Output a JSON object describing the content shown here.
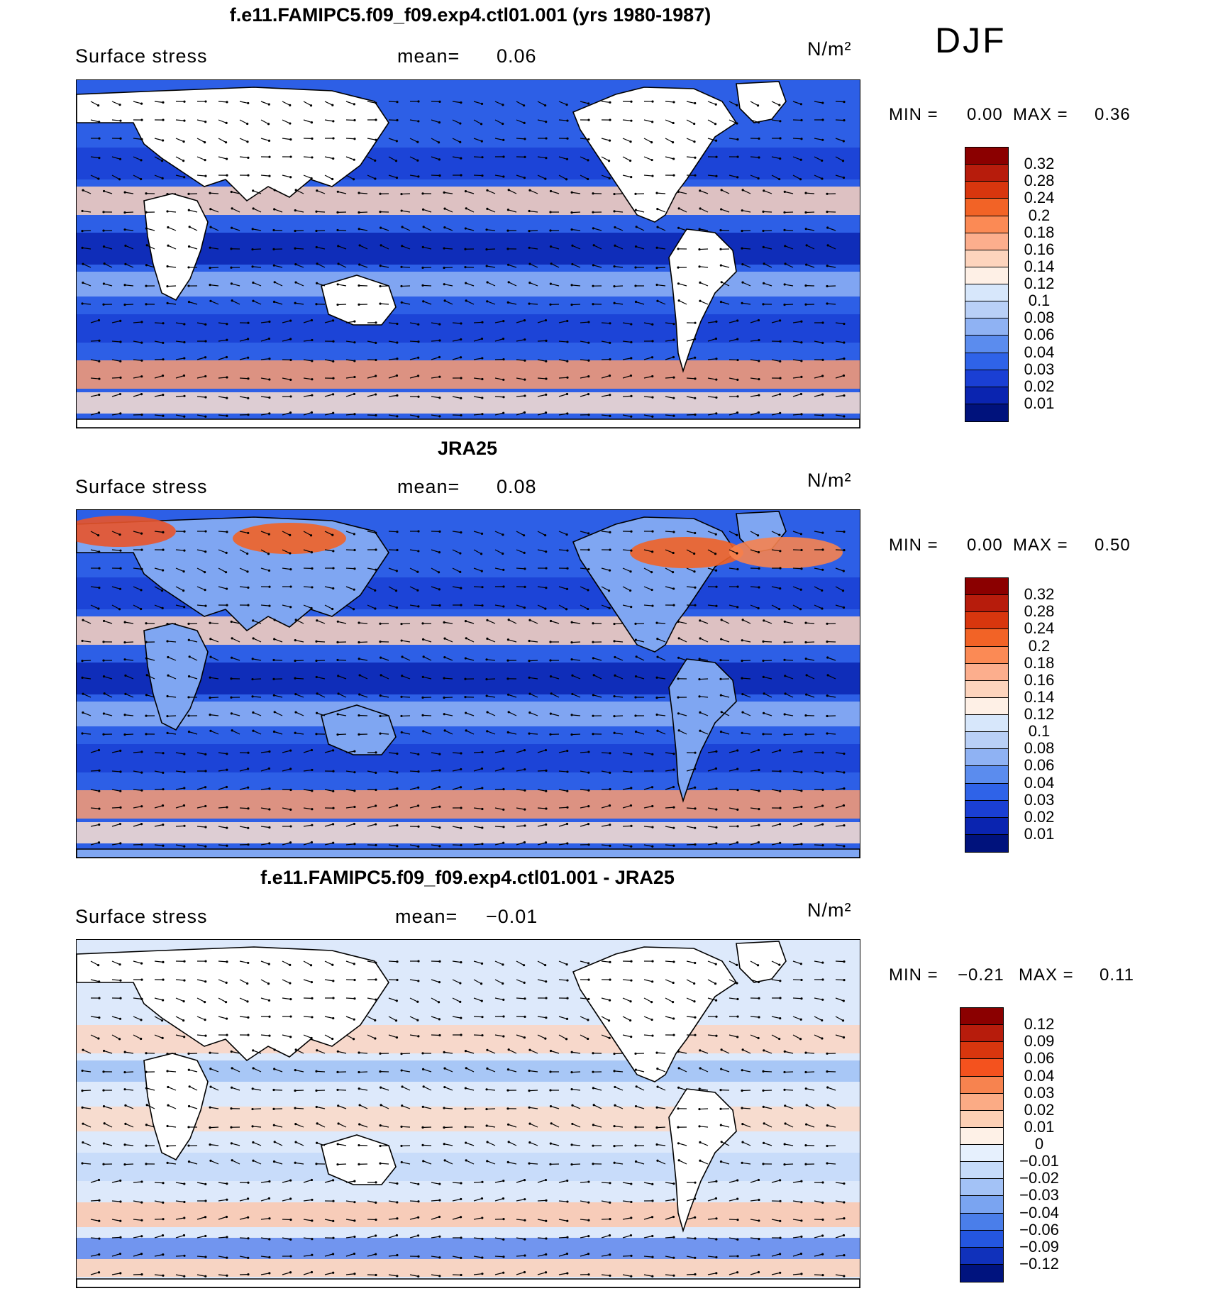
{
  "season": "DJF",
  "panels": [
    {
      "id": "model",
      "title": "f.e11.FAMIPC5.f09_f09.exp4.ctl01.001 (yrs 1980-1987)",
      "variable": "Surface stress",
      "mean_label": "mean=",
      "mean_value": "0.06",
      "units": "N/m²",
      "min_label": "MIN =",
      "min_value": "0.00",
      "max_label": "MAX =",
      "max_value": "0.36",
      "colorbar_labels": [
        "0.32",
        "0.28",
        "0.24",
        "0.2",
        "0.18",
        "0.16",
        "0.14",
        "0.12",
        "0.1",
        "0.08",
        "0.06",
        "0.04",
        "0.03",
        "0.02",
        "0.01"
      ],
      "colorbar_colors": [
        "#8b0000",
        "#b71c0c",
        "#d8360e",
        "#f26326",
        "#fb8a55",
        "#fcae8d",
        "#fdd4bd",
        "#fef0e6",
        "#d7e7fb",
        "#b9d0f7",
        "#8fb2f3",
        "#5b8cee",
        "#2f63e8",
        "#1a3fd4",
        "#0a24b0",
        "#00127c"
      ]
    },
    {
      "id": "obs",
      "title": "JRA25",
      "variable": "Surface stress",
      "mean_label": "mean=",
      "mean_value": "0.08",
      "units": "N/m²",
      "min_label": "MIN =",
      "min_value": "0.00",
      "max_label": "MAX =",
      "max_value": "0.50",
      "colorbar_labels": [
        "0.32",
        "0.28",
        "0.24",
        "0.2",
        "0.18",
        "0.16",
        "0.14",
        "0.12",
        "0.1",
        "0.08",
        "0.06",
        "0.04",
        "0.03",
        "0.02",
        "0.01"
      ],
      "colorbar_colors": [
        "#8b0000",
        "#b71c0c",
        "#d8360e",
        "#f26326",
        "#fb8a55",
        "#fcae8d",
        "#fdd4bd",
        "#fef0e6",
        "#d7e7fb",
        "#b9d0f7",
        "#8fb2f3",
        "#5b8cee",
        "#2f63e8",
        "#1a3fd4",
        "#0a24b0",
        "#00127c"
      ]
    },
    {
      "id": "diff",
      "title": "f.e11.FAMIPC5.f09_f09.exp4.ctl01.001 - JRA25",
      "variable": "Surface stress",
      "mean_label": "mean=",
      "mean_value": "−0.01",
      "units": "N/m²",
      "min_label": "MIN =",
      "min_value": "−0.21",
      "max_label": "MAX =",
      "max_value": "0.11",
      "colorbar_labels": [
        "0.12",
        "0.09",
        "0.06",
        "0.04",
        "0.03",
        "0.02",
        "0.01",
        "0",
        "−0.01",
        "−0.02",
        "−0.03",
        "−0.04",
        "−0.06",
        "−0.09",
        "−0.12"
      ],
      "colorbar_colors": [
        "#8b0000",
        "#b71c0c",
        "#d8360e",
        "#f4521e",
        "#f7834f",
        "#fbab85",
        "#fdd0b5",
        "#fef1e7",
        "#e6f0fd",
        "#c6dbfa",
        "#a3c2f6",
        "#7aa4f1",
        "#4a7eea",
        "#2456e0",
        "#1031bb",
        "#00137e"
      ]
    }
  ]
}
